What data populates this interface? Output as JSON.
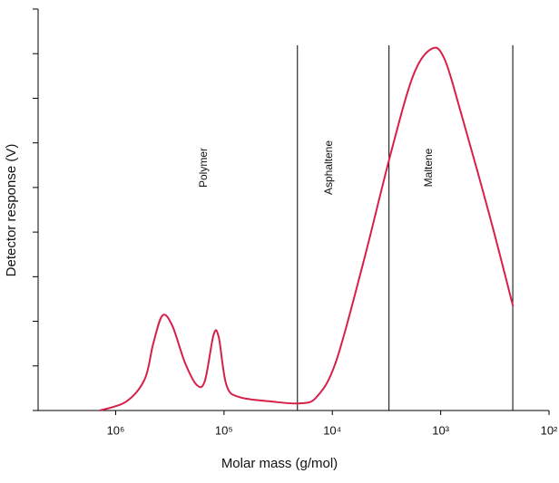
{
  "chart_data": {
    "type": "line",
    "xlabel": "Molar mass (g/mol)",
    "ylabel": "Detector response (V)",
    "xscale": "log",
    "xreversed": true,
    "xlim": [
      5200000,
      100
    ],
    "ylim": [
      0,
      9
    ],
    "xticks": [
      {
        "value": 1000000,
        "label": "10⁶"
      },
      {
        "value": 100000,
        "label": "10⁵"
      },
      {
        "value": 10000,
        "label": "10⁴"
      },
      {
        "value": 1000,
        "label": "10³"
      },
      {
        "value": 100,
        "label": "10²"
      }
    ],
    "yticks": [
      0,
      1,
      2,
      3,
      4,
      5,
      6,
      7,
      8,
      9
    ],
    "series": [
      {
        "color": "#d6204a",
        "x": [
          1400000,
          800000,
          540000,
          450000,
          370000,
          300000,
          230000,
          178000,
          150000,
          125000,
          112000,
          95000,
          72000,
          36000,
          20000,
          14000,
          9300,
          5200,
          2900,
          1800,
          1230,
          930,
          630,
          350,
          215
        ],
        "values": [
          0,
          0.2,
          0.7,
          1.5,
          2.13,
          1.9,
          1.08,
          0.57,
          0.67,
          1.69,
          1.65,
          0.57,
          0.3,
          0.2,
          0.16,
          0.3,
          1.08,
          3.3,
          5.75,
          7.5,
          8.1,
          7.9,
          6.56,
          4.33,
          2.34
        ]
      }
    ],
    "boundaries": [
      21000,
      3000,
      216
    ],
    "regions": [
      "Polymer",
      "Asphaltene",
      "Maltene"
    ]
  }
}
